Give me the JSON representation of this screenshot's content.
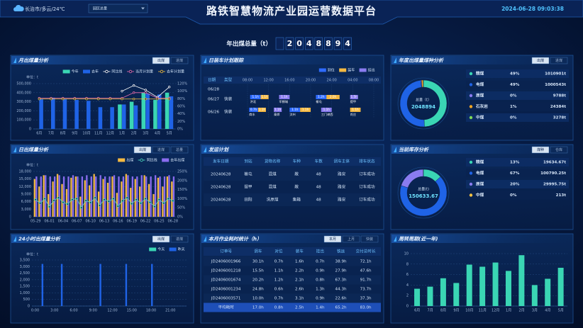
{
  "header": {
    "weather": "长治市/多云/24℃",
    "scope": "园区总量",
    "title": "路铁智慧物流产业园运营数据平台",
    "datetime": "2024-06-28 09:03:38"
  },
  "total": {
    "label": "年出煤总量（t）",
    "digits": [
      "2",
      "0",
      "4",
      "8",
      "8",
      "9",
      "4"
    ]
  },
  "shipping_plan": {
    "title": "发运计划",
    "columns": [
      "发车日期",
      "到站",
      "货物名称",
      "车种",
      "车数",
      "调车主体",
      "排车状态"
    ],
    "rows": [
      [
        "20240628",
        "榆屯",
        "混煤",
        "敞",
        "48",
        "路安",
        "订车成功"
      ],
      [
        "20240628",
        "提甲",
        "混煤",
        "敞",
        "48",
        "路安",
        "订车成功"
      ],
      [
        "20240628",
        "田阳",
        "洗原煤",
        "集箱",
        "48",
        "路安",
        "订车成功"
      ]
    ]
  },
  "work_time": {
    "title": "本月作业耗时统计（h）",
    "controls": [
      "本月",
      "上月",
      "快装"
    ],
    "columns": [
      "订单号",
      "调车",
      "对位",
      "装车",
      "挂出",
      "铁运",
      "交付总时长"
    ],
    "rows": [
      [
        "JD2406001966",
        "30.1h",
        "0.7h",
        "1.6h",
        "0.7h",
        "38.9h",
        "72.1h"
      ],
      [
        "JD2406001218",
        "15.5h",
        "1.1h",
        "2.2h",
        "0.9h",
        "27.9h",
        "47.6h"
      ],
      [
        "JD2406001674",
        "20.2h",
        "1.2h",
        "2.1h",
        "0.8h",
        "67.3h",
        "91.7h"
      ],
      [
        "JD2406001234",
        "24.8h",
        "0.6h",
        "2.6h",
        "1.3h",
        "44.3h",
        "73.7h"
      ],
      [
        "JD2406003571",
        "10.0h",
        "0.7h",
        "3.1h",
        "0.9h",
        "22.6h",
        "37.3h"
      ]
    ],
    "footer": [
      "平均耗时",
      "17.0h",
      "0.8h",
      "2.5h",
      "1.4h",
      "65.2h",
      "83.0h"
    ]
  },
  "chart_data": [
    {
      "type": "combo",
      "title": "月出煤量分析",
      "controls": [
        "出煤",
        "进煤"
      ],
      "unit": "单位：t",
      "categories": [
        "6月",
        "7月",
        "8月",
        "9月",
        "10月",
        "11月",
        "12月",
        "1月",
        "2月",
        "3月",
        "4月",
        "5月"
      ],
      "series": [
        {
          "name": "今年",
          "type": "bar",
          "color": "#3ad6b4",
          "values": [
            null,
            null,
            null,
            null,
            null,
            null,
            null,
            270000,
            300000,
            400000,
            320000,
            400000
          ]
        },
        {
          "name": "去年",
          "type": "bar",
          "color": "#1f63e6",
          "values": [
            330000,
            345000,
            330000,
            320000,
            310000,
            240000,
            240000,
            270000,
            260000,
            390000,
            380000,
            360000
          ]
        },
        {
          "name": "同比线",
          "type": "line",
          "axis": "y2",
          "color": "#ffffff",
          "values": [
            null,
            null,
            null,
            null,
            null,
            null,
            null,
            100,
            115,
            103,
            84,
            111
          ]
        },
        {
          "name": "当月计划量",
          "type": "line",
          "color": "#ec6fb0",
          "values": [
            340000,
            340000,
            340000,
            340000,
            340000,
            340000,
            340000,
            340000,
            400000,
            400000,
            340000,
            340000
          ]
        },
        {
          "name": "去年计划量",
          "type": "line",
          "color": "#f5c242",
          "values": [
            330000,
            330000,
            330000,
            330000,
            330000,
            330000,
            330000,
            330000,
            330000,
            330000,
            330000,
            330000
          ]
        }
      ],
      "ylim": [
        0,
        500000
      ],
      "yticks": [
        0,
        {
          "value": 100000,
          "label": "100,000"
        },
        {
          "value": 200000,
          "label": "200,000"
        },
        {
          "value": 300000,
          "label": "300,000"
        },
        {
          "value": 400000,
          "label": "400,000"
        },
        {
          "value": 500000,
          "label": "500,000"
        }
      ],
      "y2lim": [
        0,
        120
      ],
      "y2ticks": [
        {
          "value": 0,
          "label": "0%"
        },
        {
          "value": 20,
          "label": "20%"
        },
        {
          "value": 40,
          "label": "40%"
        },
        {
          "value": 60,
          "label": "60%"
        },
        {
          "value": 80,
          "label": "80%"
        },
        {
          "value": 100,
          "label": "100%"
        },
        {
          "value": 120,
          "label": "120%"
        }
      ]
    },
    {
      "type": "combo",
      "title": "日出煤量分析",
      "controls": [
        "出煤",
        "进煤",
        "总量"
      ],
      "unit": "单位：t",
      "categories": [
        "05-29",
        null,
        null,
        "06-01",
        null,
        null,
        "06-04",
        null,
        null,
        "06-07",
        null,
        null,
        "06-10",
        null,
        null,
        "06-13",
        null,
        null,
        "06-16",
        null,
        null,
        "06-19",
        null,
        null,
        "06-22",
        null,
        null,
        "06-25",
        null,
        null,
        "06-28"
      ],
      "series": [
        {
          "name": "出煤",
          "type": "bar",
          "color": "#f5b942",
          "values": [
            15000,
            12000,
            16500,
            9000,
            14000,
            17000,
            13000,
            11000,
            15500,
            16000,
            8000,
            14500,
            12500,
            17000,
            10000,
            15000,
            13500,
            16000,
            9500,
            14000,
            17000,
            11500,
            15000,
            12000,
            16500,
            13000,
            9000,
            15500,
            12000,
            16000,
            14000
          ]
        },
        {
          "name": "同比线",
          "type": "line",
          "axis": "y2",
          "color": "#4fe0c8",
          "values": [
            95,
            75,
            100,
            55,
            90,
            105,
            80,
            70,
            95,
            100,
            50,
            90,
            78,
            105,
            62,
            95,
            85,
            100,
            58,
            88,
            105,
            72,
            95,
            75,
            100,
            80,
            56,
            95,
            75,
            100,
            88
          ]
        },
        {
          "name": "去年出煤",
          "type": "bar",
          "color": "#8a6cf0",
          "values": [
            16000,
            16000,
            16500,
            16000,
            16000,
            16500,
            16000,
            16000,
            16500,
            16000,
            16000,
            16500,
            16000,
            16000,
            16500,
            16000,
            16000,
            16500,
            16000,
            16000,
            16500,
            16000,
            16000,
            16500,
            16000,
            16000,
            16500,
            16000,
            16000,
            16500,
            16000
          ]
        }
      ],
      "ylim": [
        0,
        18000
      ],
      "yticks": [
        0,
        {
          "value": 3000,
          "label": "3,000"
        },
        {
          "value": 6000,
          "label": "6,000"
        },
        {
          "value": 9000,
          "label": "9,000"
        },
        {
          "value": 12000,
          "label": "12,000"
        },
        {
          "value": 15000,
          "label": "15,000"
        },
        {
          "value": 18000,
          "label": "18,000"
        }
      ],
      "y2lim": [
        0,
        250
      ],
      "y2ticks": [
        {
          "value": 0,
          "label": "0%"
        },
        {
          "value": 50,
          "label": "50%"
        },
        {
          "value": 100,
          "label": "100%"
        },
        {
          "value": 150,
          "label": "150%"
        },
        {
          "value": 200,
          "label": "200%"
        },
        {
          "value": 250,
          "label": "250%"
        }
      ]
    },
    {
      "type": "combo",
      "title": "24小时出煤量分析",
      "controls": [
        "出煤",
        "进煤"
      ],
      "unit": "单位：t",
      "categories": [
        "0:00",
        null,
        null,
        "3:00",
        null,
        null,
        "6:00",
        null,
        null,
        "9:00",
        null,
        null,
        "12:00",
        null,
        null,
        "15:00",
        null,
        null,
        "18:00",
        null,
        null,
        "21:00",
        null,
        null
      ],
      "series": [
        {
          "name": "今天",
          "type": "bar",
          "color": "#3ad6b4",
          "values": [
            0,
            0,
            0,
            0,
            0,
            0,
            0,
            0,
            0,
            0,
            0,
            0,
            0,
            0,
            0,
            0,
            0,
            0,
            0,
            0,
            0,
            0,
            0,
            0
          ]
        },
        {
          "name": "昨天",
          "type": "bar",
          "color": "#1f63e6",
          "values": [
            0,
            3200,
            0,
            0,
            3200,
            0,
            0,
            0,
            0,
            0,
            3200,
            0,
            0,
            0,
            3200,
            0,
            0,
            0,
            3200,
            0,
            0,
            0,
            0,
            0
          ]
        }
      ],
      "ylim": [
        0,
        3500
      ],
      "yticks": [
        0,
        500,
        {
          "value": 1000,
          "label": "1,000"
        },
        {
          "value": 1500,
          "label": "1,500"
        },
        {
          "value": 2000,
          "label": "2,000"
        },
        {
          "value": 2500,
          "label": "2,500"
        },
        {
          "value": 3000,
          "label": "3,000"
        },
        {
          "value": 3500,
          "label": "3,500"
        }
      ]
    },
    {
      "type": "gantt",
      "title": "日装车计划跟踪",
      "columns": [
        "日期",
        "类型"
      ],
      "rows": [
        {
          "date": "06/28"
        },
        {
          "date": "06/27",
          "kind": "快装"
        },
        {
          "date": "06/26",
          "kind": "快装"
        }
      ],
      "xlim": [
        0,
        24
      ],
      "xticks": [
        {
          "value": 0,
          "label": "08:00"
        },
        {
          "value": 4,
          "label": "12:00"
        },
        {
          "value": 8,
          "label": "16:00"
        },
        {
          "value": 12,
          "label": "20:00"
        },
        {
          "value": 16,
          "label": "24:00"
        },
        {
          "value": 20,
          "label": "04:00"
        },
        {
          "value": 24,
          "label": "08:00"
        }
      ],
      "series": [
        {
          "name": "到位",
          "color": "#2f6bff",
          "tasks": [
            {
              "row": 1,
              "start": 0.5,
              "end": 2.5,
              "label": "1.1h",
              "site": "洪北"
            },
            {
              "row": 1,
              "start": 13,
              "end": 15,
              "label": "1.2h",
              "site": "榆屯"
            },
            {
              "row": 2,
              "start": 0.3,
              "end": 2,
              "label": "0.7h",
              "site": "商水"
            },
            {
              "row": 2,
              "start": 8,
              "end": 10,
              "label": "1.1h",
              "site": "汶州"
            }
          ]
        },
        {
          "name": "装车",
          "color": "#f5b942",
          "tasks": [
            {
              "row": 1,
              "start": 2.5,
              "end": 4,
              "label": "1.1h"
            },
            {
              "row": 1,
              "start": 15,
              "end": 17.5,
              "label": "2.0h"
            },
            {
              "row": 2,
              "start": 2,
              "end": 3.5,
              "label": "1.1h"
            },
            {
              "row": 2,
              "start": 10,
              "end": 12,
              "label": "1.1h"
            },
            {
              "row": 2,
              "start": 19.5,
              "end": 21.5,
              "label": "1.1h",
              "site": "肖庄"
            }
          ]
        },
        {
          "name": "挂出",
          "color": "#8a7cf0",
          "tasks": [
            {
              "row": 1,
              "start": 6,
              "end": 8,
              "label": "1.1h",
              "site": "军鹤城"
            },
            {
              "row": 1,
              "start": 19.5,
              "end": 21,
              "label": "1.5h",
              "site": "提甲"
            },
            {
              "row": 2,
              "start": 5,
              "end": 6.5,
              "label": "1.1h",
              "site": "泰郊"
            },
            {
              "row": 2,
              "start": 14,
              "end": 16,
              "label": "1.1h",
              "site": "三门峡西"
            }
          ]
        }
      ]
    },
    {
      "type": "donut",
      "title": "年度出煤量煤种分析",
      "controls": [
        "出煤",
        "进煤"
      ],
      "center_label": "总量（t）",
      "center_value": 2048894,
      "categories": [
        "精煤",
        "电煤",
        "原煤",
        "石灰岩",
        "中煤"
      ],
      "values": [
        1010901,
        1000543,
        9788,
        24384,
        3278
      ],
      "value_labels": [
        "1010901t",
        "1000543t",
        "9788t",
        "24384t",
        "3278t"
      ],
      "share_labels": [
        "49%",
        "49%",
        "0%",
        "1%",
        "0%"
      ],
      "colors": [
        "#3ad6b4",
        "#1f63e6",
        "#8a7cf0",
        "#f5a623",
        "#7ed957"
      ]
    },
    {
      "type": "donut",
      "title": "当前库存分析",
      "controls": [
        "煤种",
        "仓库"
      ],
      "center_label": "总量(t)",
      "center_value": 150633.67,
      "categories": [
        "精煤",
        "电煤",
        "原煤",
        "中煤"
      ],
      "values": [
        19634.67,
        100790.25,
        29995.75,
        213
      ],
      "value_labels": [
        "19634.67t",
        "100790.25t",
        "29995.75t",
        "213t"
      ],
      "share_labels": [
        "13%",
        "67%",
        "20%",
        "0%"
      ],
      "colors": [
        "#3ad6b4",
        "#1f63e6",
        "#8a7cf0",
        "#f5c242"
      ]
    },
    {
      "type": "combo",
      "title": "周转周期(近一年)",
      "categories": [
        "6月",
        "7月",
        "8月",
        "9月",
        "10月",
        "11月",
        "12月",
        "1月",
        "2月",
        "3月",
        "4月",
        "5月"
      ],
      "series": [
        {
          "type": "bar",
          "color": "#3ad6b4",
          "values": [
            3.3,
            3.7,
            5.3,
            4.4,
            7.9,
            7.5,
            8.3,
            6.7,
            9.7,
            4.0,
            5.2,
            7.3
          ]
        }
      ],
      "ylim": [
        0,
        10
      ],
      "yticks": [
        0,
        2,
        4,
        6,
        8,
        10
      ]
    }
  ]
}
